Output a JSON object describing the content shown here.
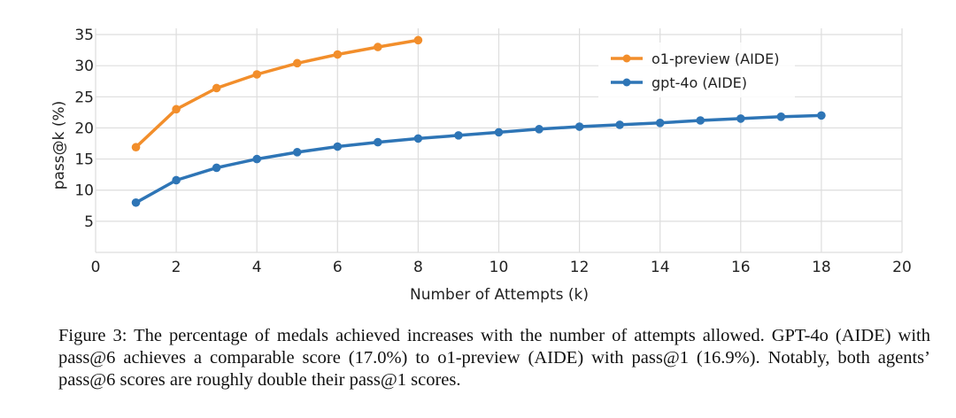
{
  "chart_data": {
    "type": "line",
    "xlabel": "Number of Attempts (k)",
    "ylabel": "pass@k (%)",
    "xlim": [
      0,
      20
    ],
    "ylim": [
      0,
      36
    ],
    "xticks": [
      0,
      2,
      4,
      6,
      8,
      10,
      12,
      14,
      16,
      18,
      20
    ],
    "yticks": [
      5,
      10,
      15,
      20,
      25,
      30,
      35
    ],
    "grid": true,
    "legend_position": "top-right",
    "series": [
      {
        "name": "o1-preview (AIDE)",
        "color": "#f28e2b",
        "x": [
          1,
          2,
          3,
          4,
          5,
          6,
          7,
          8
        ],
        "values": [
          16.9,
          23.0,
          26.4,
          28.6,
          30.4,
          31.8,
          33.0,
          34.1
        ]
      },
      {
        "name": "gpt-4o (AIDE)",
        "color": "#2e75b6",
        "x": [
          1,
          2,
          3,
          4,
          5,
          6,
          7,
          8,
          9,
          10,
          11,
          12,
          13,
          14,
          15,
          16,
          17,
          18
        ],
        "values": [
          8.0,
          11.6,
          13.6,
          15.0,
          16.1,
          17.0,
          17.7,
          18.3,
          18.8,
          19.3,
          19.8,
          20.2,
          20.5,
          20.8,
          21.2,
          21.5,
          21.8,
          22.0
        ]
      }
    ]
  },
  "caption": "Figure 3: The percentage of medals achieved increases with the number of attempts allowed. GPT-4o (AIDE) with pass@6 achieves a comparable score (17.0%) to o1-preview (AIDE) with pass@1 (16.9%). Notably, both agents’ pass@6 scores are roughly double their pass@1 scores."
}
